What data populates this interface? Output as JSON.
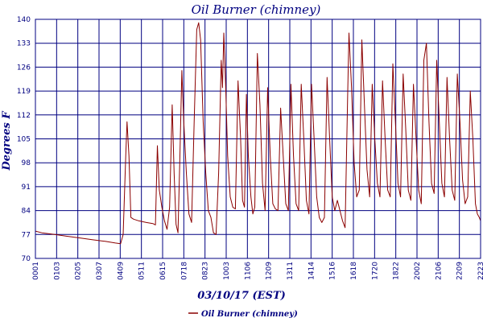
{
  "chart_data": {
    "type": "line",
    "title": "Oil Burner (chimney)",
    "xlabel": "03/10/17 (EST)",
    "ylabel": "Degrees F",
    "ylim": [
      70,
      140
    ],
    "yticks": [
      "70",
      "77",
      "84",
      "91",
      "98",
      "105",
      "112",
      "119",
      "126",
      "133",
      "140"
    ],
    "xticks": [
      "0001",
      "0103",
      "0205",
      "0307",
      "0409",
      "0511",
      "0615",
      "0718",
      "0823",
      "1003",
      "1106",
      "1209",
      "1311",
      "1414",
      "1516",
      "1618",
      "1720",
      "1822",
      "2002",
      "2106",
      "2209",
      "2223"
    ],
    "grid": true,
    "legend": "bottom-center",
    "series": [
      {
        "name": "Oil Burner (chimney)",
        "color": "#8b0000",
        "values": [
          [
            0,
            78
          ],
          [
            5,
            77.5
          ],
          [
            15,
            77
          ],
          [
            24,
            76.5
          ],
          [
            34,
            76
          ],
          [
            44,
            75.5
          ],
          [
            54,
            75
          ],
          [
            62,
            74.5
          ],
          [
            66,
            74.3
          ],
          [
            68,
            77
          ],
          [
            70,
            100
          ],
          [
            71,
            110
          ],
          [
            72.5,
            100
          ],
          [
            74,
            82
          ],
          [
            76,
            81.5
          ],
          [
            80,
            81
          ],
          [
            86,
            80.5
          ],
          [
            91,
            80.2
          ],
          [
            93,
            79.8
          ],
          [
            94.5,
            103
          ],
          [
            96,
            90
          ],
          [
            98,
            85
          ],
          [
            100,
            81
          ],
          [
            102,
            78.5
          ],
          [
            104,
            85
          ],
          [
            106,
            115
          ],
          [
            107.5,
            95
          ],
          [
            109,
            80
          ],
          [
            110.5,
            77.5
          ],
          [
            112,
            100
          ],
          [
            113.5,
            125
          ],
          [
            115,
            110
          ],
          [
            117,
            95
          ],
          [
            119,
            83
          ],
          [
            121,
            80.5
          ],
          [
            123,
            110
          ],
          [
            125,
            137
          ],
          [
            126.5,
            139
          ],
          [
            128,
            134
          ],
          [
            130,
            110
          ],
          [
            132,
            95
          ],
          [
            134,
            84
          ],
          [
            136,
            82
          ],
          [
            138,
            77.5
          ],
          [
            140,
            77
          ],
          [
            142,
            95
          ],
          [
            144,
            128
          ],
          [
            145,
            120
          ],
          [
            146,
            136
          ],
          [
            147.5,
            120
          ],
          [
            149,
            100
          ],
          [
            151,
            88
          ],
          [
            153,
            85
          ],
          [
            155,
            84.5
          ],
          [
            157,
            122
          ],
          [
            159,
            105
          ],
          [
            160.5,
            87
          ],
          [
            162,
            85
          ],
          [
            163.5,
            118
          ],
          [
            165,
            100
          ],
          [
            167,
            88
          ],
          [
            168.5,
            83
          ],
          [
            170,
            85
          ],
          [
            172,
            130
          ],
          [
            174,
            115
          ],
          [
            176,
            92
          ],
          [
            178,
            84
          ],
          [
            180,
            120
          ],
          [
            182,
            100
          ],
          [
            184,
            86
          ],
          [
            186,
            84.5
          ],
          [
            188,
            84
          ],
          [
            190,
            114
          ],
          [
            192,
            100
          ],
          [
            194,
            86
          ],
          [
            196,
            84
          ],
          [
            198,
            121
          ],
          [
            200,
            100
          ],
          [
            202,
            86
          ],
          [
            204,
            84
          ],
          [
            206,
            121
          ],
          [
            208,
            105
          ],
          [
            210,
            87
          ],
          [
            212,
            83
          ],
          [
            214,
            121
          ],
          [
            216,
            105
          ],
          [
            218,
            88
          ],
          [
            220,
            82
          ],
          [
            222,
            80.5
          ],
          [
            224,
            82
          ],
          [
            226,
            123
          ],
          [
            228,
            105
          ],
          [
            230,
            88
          ],
          [
            232,
            84
          ],
          [
            234,
            87
          ],
          [
            236,
            84
          ],
          [
            238,
            81
          ],
          [
            240,
            79
          ],
          [
            242,
            118
          ],
          [
            243,
            136
          ],
          [
            245,
            120
          ],
          [
            247,
            98
          ],
          [
            249,
            88
          ],
          [
            251,
            90
          ],
          [
            253,
            134
          ],
          [
            255,
            115
          ],
          [
            257,
            96
          ],
          [
            259,
            88
          ],
          [
            261,
            121
          ],
          [
            263,
            105
          ],
          [
            265,
            92
          ],
          [
            267,
            88
          ],
          [
            269,
            122
          ],
          [
            271,
            105
          ],
          [
            273,
            90
          ],
          [
            275,
            88
          ],
          [
            277,
            127
          ],
          [
            279,
            110
          ],
          [
            281,
            92
          ],
          [
            283,
            88
          ],
          [
            285,
            124
          ],
          [
            287,
            108
          ],
          [
            289,
            90
          ],
          [
            291,
            87
          ],
          [
            293,
            121
          ],
          [
            295,
            105
          ],
          [
            297,
            90
          ],
          [
            299,
            86
          ],
          [
            301,
            128
          ],
          [
            303,
            133
          ],
          [
            305,
            110
          ],
          [
            307,
            92
          ],
          [
            309,
            89
          ],
          [
            311,
            128
          ],
          [
            313,
            110
          ],
          [
            315,
            92
          ],
          [
            317,
            88
          ],
          [
            319,
            123
          ],
          [
            321,
            105
          ],
          [
            323,
            90
          ],
          [
            325,
            87
          ],
          [
            327,
            124
          ],
          [
            329,
            110
          ],
          [
            331,
            93
          ],
          [
            333,
            86
          ],
          [
            335,
            88
          ],
          [
            337,
            119
          ],
          [
            339,
            105
          ],
          [
            341,
            86
          ],
          [
            342.5,
            83
          ],
          [
            344,
            82
          ],
          [
            345,
            81
          ]
        ]
      }
    ]
  }
}
